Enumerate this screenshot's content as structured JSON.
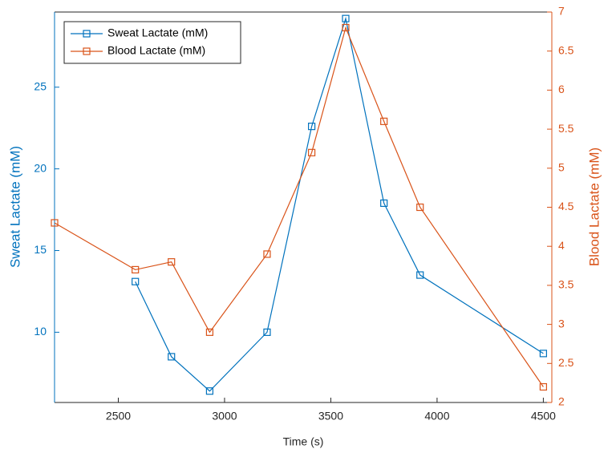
{
  "chart_data": {
    "type": "line",
    "x_label": "Time (s)",
    "y_label": "Sweat Lactate (mM)",
    "y2_label": "Blood Lactate (mM)",
    "x": [
      2200,
      2580,
      2750,
      2930,
      3200,
      3410,
      3570,
      3750,
      3920,
      4500
    ],
    "series": [
      {
        "name": "Sweat Lactate (mM)",
        "color": "#0072BD",
        "values": [
          null,
          13.1,
          8.5,
          6.4,
          10.0,
          22.6,
          29.2,
          17.9,
          13.5,
          8.7
        ]
      },
      {
        "name": "Blood Lactate (mM)",
        "color": "#D95319",
        "axis": "y2",
        "values": [
          4.3,
          3.7,
          3.8,
          2.9,
          3.9,
          5.2,
          6.8,
          5.6,
          4.5,
          2.2
        ]
      }
    ],
    "xlim": [
      2200,
      4540
    ],
    "xticks": [
      2500,
      3000,
      3500,
      4000,
      4500
    ],
    "ylim": [
      5.7,
      29.6
    ],
    "yticks": [
      10,
      15,
      20,
      25
    ],
    "y2lim": [
      2,
      7
    ],
    "y2ticks": [
      2,
      2.5,
      3,
      3.5,
      4,
      4.5,
      5,
      5.5,
      6,
      6.5,
      7
    ],
    "legend": "upper left",
    "marker": "square"
  }
}
